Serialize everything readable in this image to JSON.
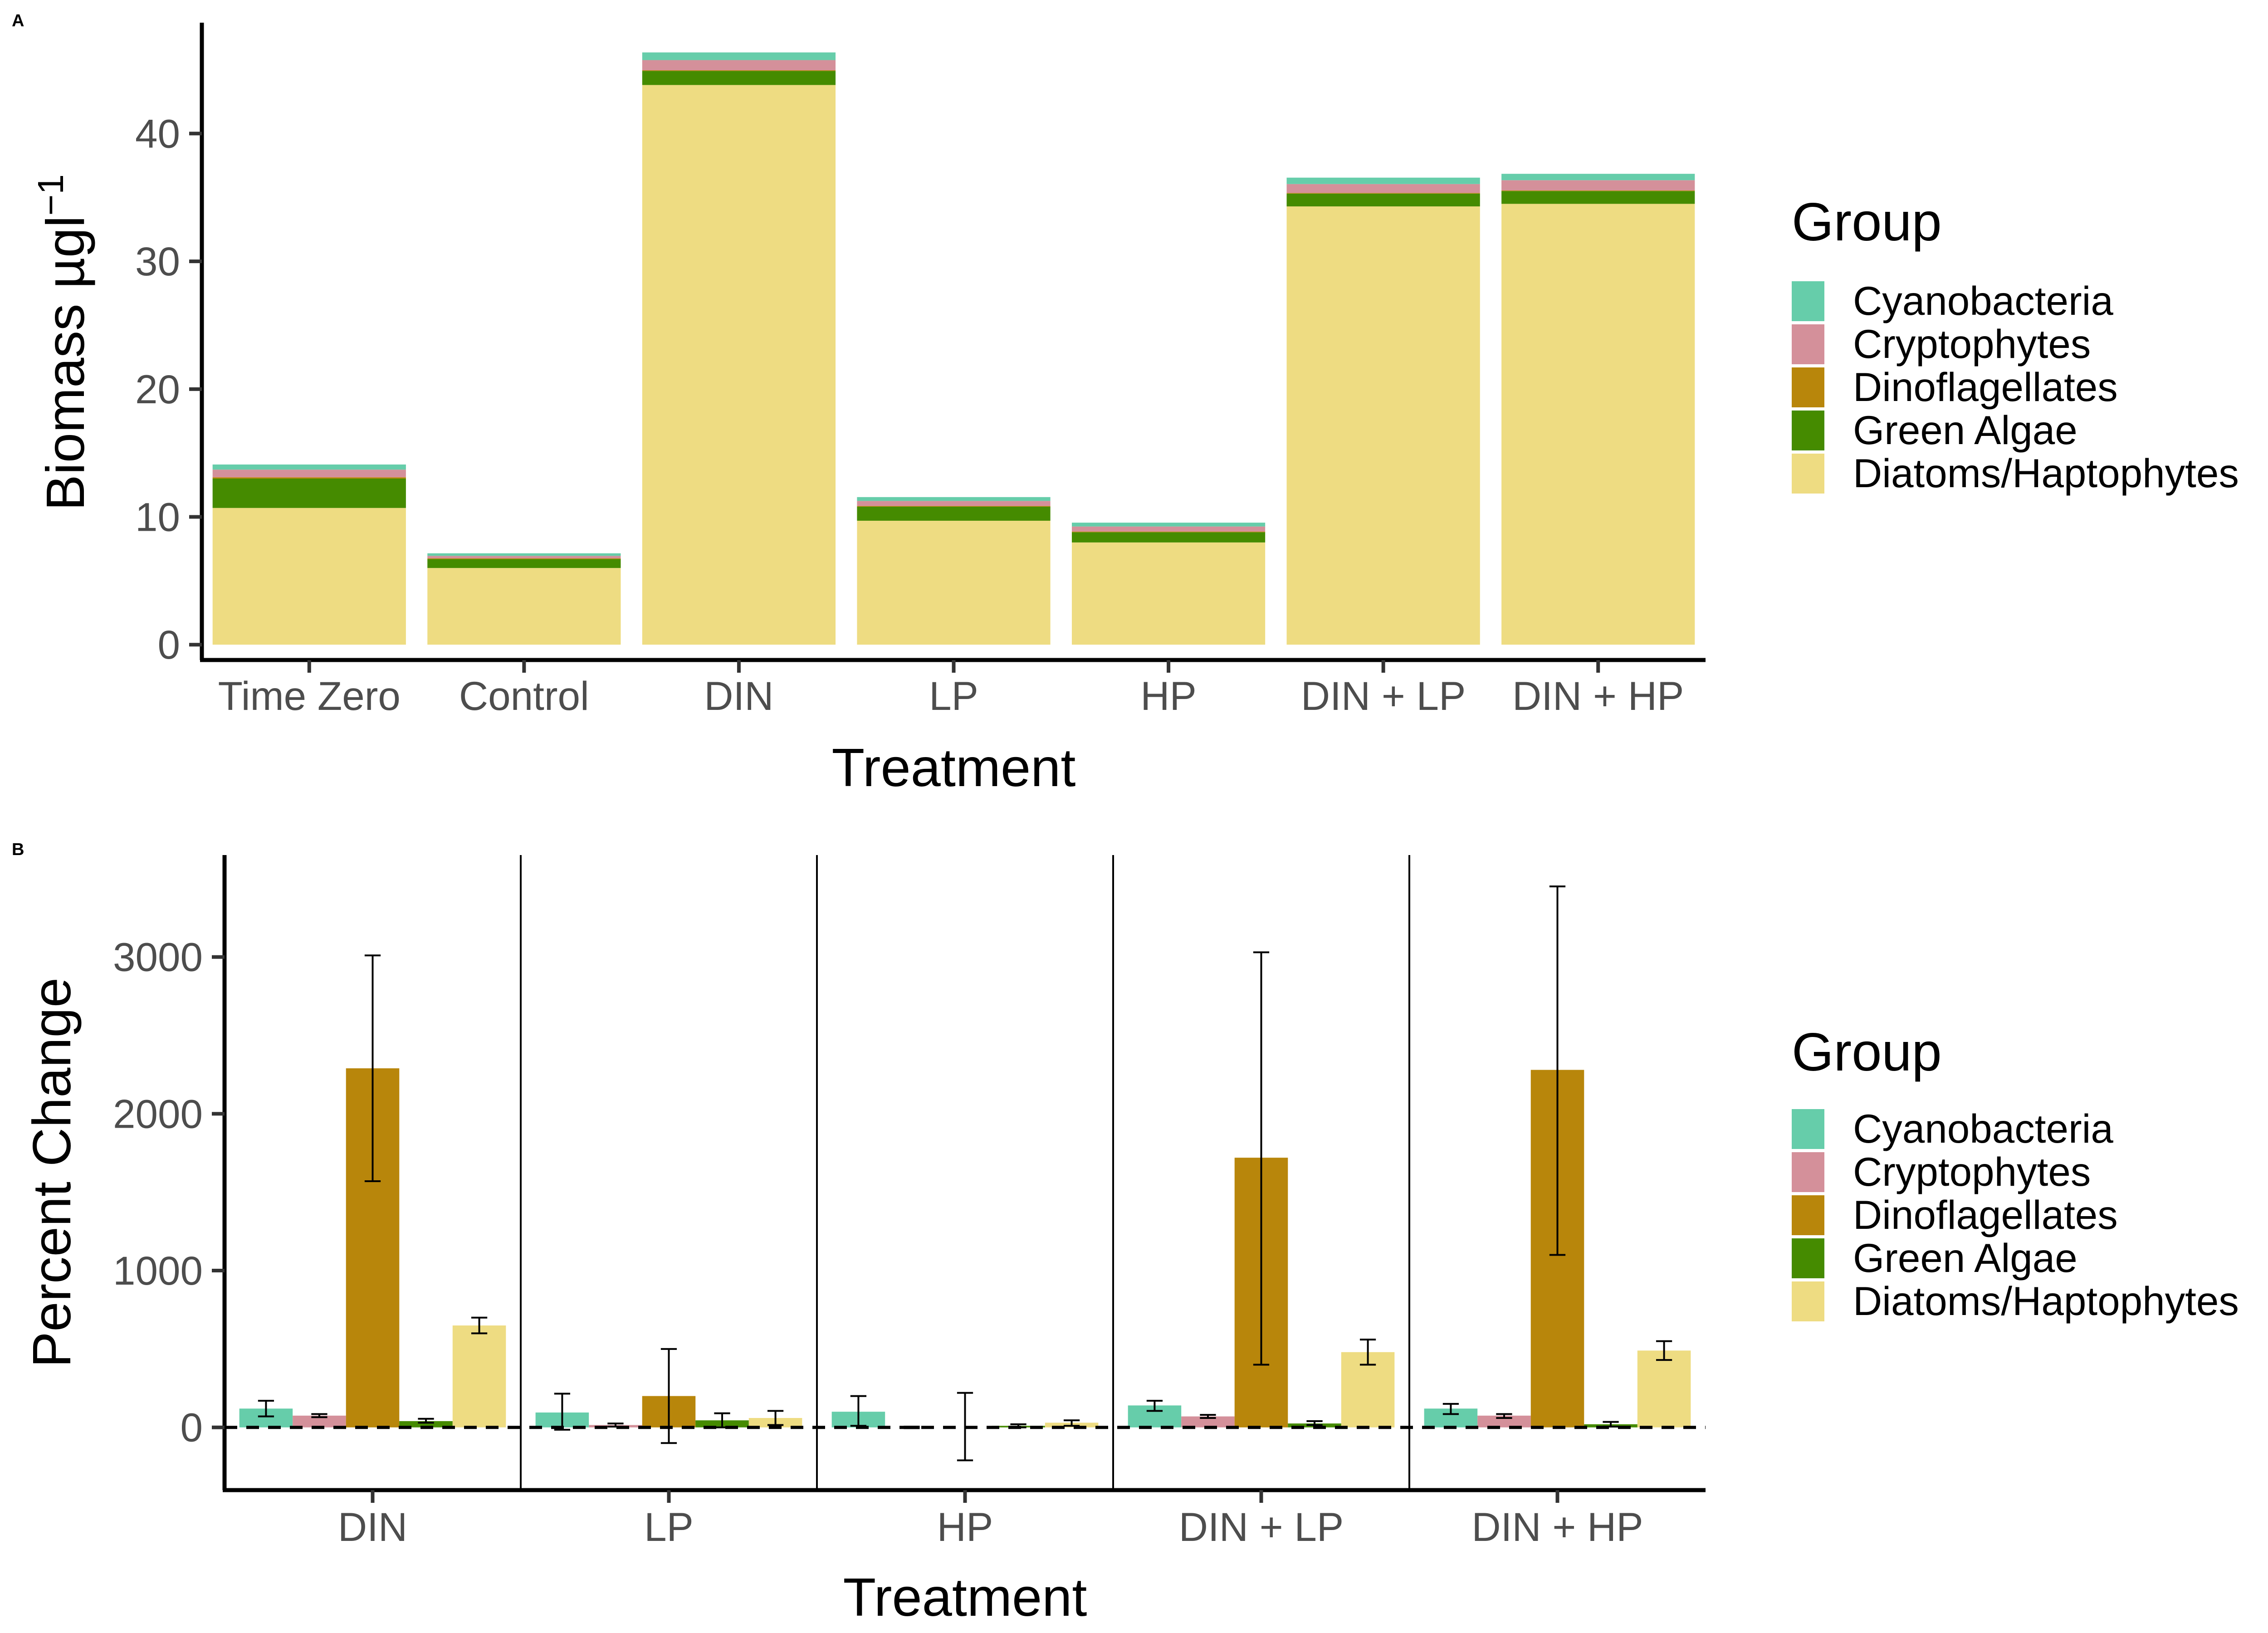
{
  "colors": {
    "Cyanobacteria": "#66cdaa",
    "Cryptophytes": "#d4909a",
    "Dinoflagellates": "#b8860b",
    "Green Algae": "#458b00",
    "Diatoms/Haptophytes": "#eedc82"
  },
  "chart_data": [
    {
      "panel": "A",
      "type": "bar",
      "stacked": true,
      "xlabel": "Treatment",
      "ylabel": "Biomass µgl",
      "ylabel_superscript": "−1",
      "ylim": [
        -1.2,
        48.5
      ],
      "yticks": [
        0,
        10,
        20,
        30,
        40
      ],
      "grid": false,
      "legend_title": "Group",
      "legend_position": "right",
      "categories": [
        "Time Zero",
        "Control",
        "DIN",
        "LP",
        "HP",
        "DIN + LP",
        "DIN + HP"
      ],
      "series": [
        {
          "name": "Diatoms/Haptophytes",
          "values": [
            10.7,
            6.0,
            43.8,
            9.7,
            8.0,
            34.3,
            34.5
          ]
        },
        {
          "name": "Green Algae",
          "values": [
            2.3,
            0.7,
            1.1,
            1.1,
            0.8,
            1.0,
            1.0
          ]
        },
        {
          "name": "Dinoflagellates",
          "values": [
            0.1,
            0.05,
            0.05,
            0.05,
            0.05,
            0.05,
            0.05
          ]
        },
        {
          "name": "Cryptophytes",
          "values": [
            0.6,
            0.2,
            0.8,
            0.4,
            0.4,
            0.7,
            0.8
          ]
        },
        {
          "name": "Cyanobacteria",
          "values": [
            0.4,
            0.2,
            0.6,
            0.3,
            0.3,
            0.5,
            0.5
          ]
        }
      ],
      "legend_order": [
        "Cyanobacteria",
        "Cryptophytes",
        "Dinoflagellates",
        "Green Algae",
        "Diatoms/Haptophytes"
      ]
    },
    {
      "panel": "B",
      "type": "bar",
      "grouped": true,
      "xlabel": "Treatment",
      "ylabel": "Percent Change",
      "ylim": [
        -400,
        3650
      ],
      "yticks": [
        0,
        1000,
        2000,
        3000
      ],
      "grid": false,
      "reference_line": 0,
      "legend_title": "Group",
      "legend_position": "right",
      "categories": [
        "DIN",
        "LP",
        "HP",
        "DIN + LP",
        "DIN + HP"
      ],
      "series": [
        {
          "name": "Cyanobacteria",
          "values": [
            120,
            95,
            100,
            140,
            120
          ],
          "err_low": [
            70,
            -15,
            10,
            105,
            85
          ],
          "err_high": [
            170,
            215,
            200,
            170,
            150
          ]
        },
        {
          "name": "Cryptophytes",
          "values": [
            75,
            15,
            0,
            70,
            75
          ],
          "err_low": [
            65,
            5,
            -5,
            60,
            60
          ],
          "err_high": [
            85,
            25,
            5,
            80,
            85
          ]
        },
        {
          "name": "Dinoflagellates",
          "values": [
            2290,
            200,
            0,
            1720,
            2280
          ],
          "err_low": [
            1570,
            -100,
            -210,
            400,
            1100
          ],
          "err_high": [
            3010,
            500,
            220,
            3030,
            3450
          ]
        },
        {
          "name": "Green Algae",
          "values": [
            40,
            45,
            10,
            25,
            20
          ],
          "err_low": [
            30,
            0,
            0,
            15,
            5
          ],
          "err_high": [
            55,
            90,
            20,
            40,
            35
          ]
        },
        {
          "name": "Diatoms/Haptophytes",
          "values": [
            650,
            60,
            30,
            480,
            490
          ],
          "err_low": [
            600,
            15,
            10,
            400,
            430
          ],
          "err_high": [
            700,
            105,
            45,
            560,
            550
          ]
        }
      ],
      "legend_order": [
        "Cyanobacteria",
        "Cryptophytes",
        "Dinoflagellates",
        "Green Algae",
        "Diatoms/Haptophytes"
      ]
    }
  ]
}
